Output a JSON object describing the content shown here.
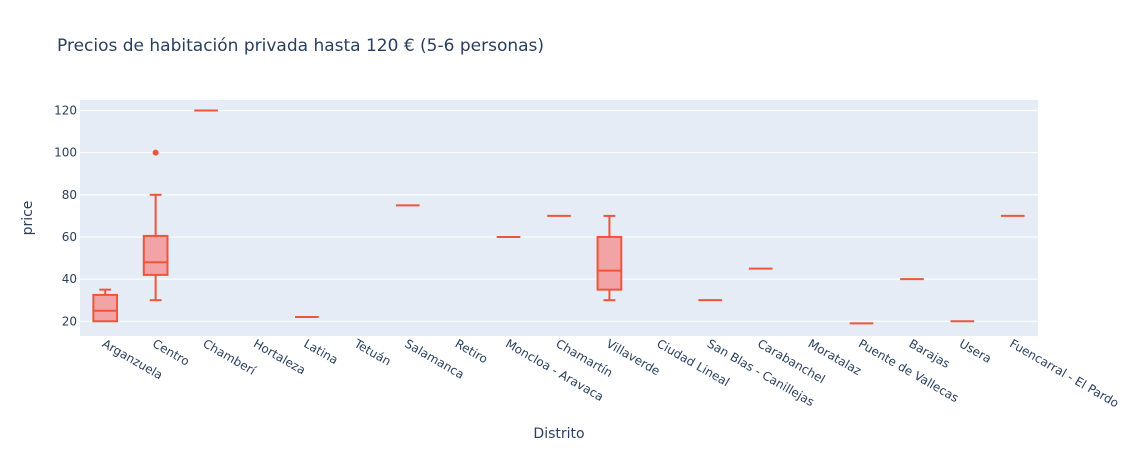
{
  "chart_data": {
    "type": "box",
    "title": "Precios de habitación privada hasta 120 € (5-6 personas)",
    "xlabel": "Distrito",
    "ylabel": "price",
    "ylim": [
      13,
      125
    ],
    "yticks": [
      20,
      40,
      60,
      80,
      100,
      120
    ],
    "grid": true,
    "colors": {
      "box": "#ef553b",
      "box_fill": "#f2a3a6",
      "plot_bg": "#e5ecf6",
      "grid": "#ffffff",
      "text": "#2a3f5f"
    },
    "categories": [
      "Arganzuela",
      "Centro",
      "Chamberí",
      "Hortaleza",
      "Latina",
      "Tetuán",
      "Salamanca",
      "Retiro",
      "Moncloa - Aravaca",
      "Chamartín",
      "Villaverde",
      "Ciudad Lineal",
      "San Blas - Canillejas",
      "Carabanchel",
      "Moratalaz",
      "Puente de Vallecas",
      "Barajas",
      "Usera",
      "Fuencarral - El Pardo"
    ],
    "boxes": [
      {
        "category": "Arganzuela",
        "min": 20,
        "q1": 20,
        "median": 25,
        "q3": 32.5,
        "max": 35,
        "outliers": []
      },
      {
        "category": "Centro",
        "min": 30,
        "q1": 42,
        "median": 48,
        "q3": 60.5,
        "max": 80,
        "outliers": [
          100
        ]
      },
      {
        "category": "Chamberí",
        "min": 120,
        "q1": 120,
        "median": 120,
        "q3": 120,
        "max": 120,
        "outliers": []
      },
      {
        "category": "Latina",
        "min": 22,
        "q1": 22,
        "median": 22,
        "q3": 22,
        "max": 22,
        "outliers": []
      },
      {
        "category": "Salamanca",
        "min": 75,
        "q1": 75,
        "median": 75,
        "q3": 75,
        "max": 75,
        "outliers": []
      },
      {
        "category": "Moncloa - Aravaca",
        "min": 60,
        "q1": 60,
        "median": 60,
        "q3": 60,
        "max": 60,
        "outliers": []
      },
      {
        "category": "Chamartín",
        "min": 70,
        "q1": 70,
        "median": 70,
        "q3": 70,
        "max": 70,
        "outliers": []
      },
      {
        "category": "Villaverde",
        "min": 30,
        "q1": 35,
        "median": 44,
        "q3": 60,
        "max": 70,
        "outliers": []
      },
      {
        "category": "San Blas - Canillejas",
        "min": 30,
        "q1": 30,
        "median": 30,
        "q3": 30,
        "max": 30,
        "outliers": []
      },
      {
        "category": "Carabanchel",
        "min": 45,
        "q1": 45,
        "median": 45,
        "q3": 45,
        "max": 45,
        "outliers": []
      },
      {
        "category": "Puente de Vallecas",
        "min": 19,
        "q1": 19,
        "median": 19,
        "q3": 19,
        "max": 19,
        "outliers": []
      },
      {
        "category": "Barajas",
        "min": 40,
        "q1": 40,
        "median": 40,
        "q3": 40,
        "max": 40,
        "outliers": []
      },
      {
        "category": "Usera",
        "min": 20,
        "q1": 20,
        "median": 20,
        "q3": 20,
        "max": 20,
        "outliers": []
      },
      {
        "category": "Fuencarral - El Pardo",
        "min": 70,
        "q1": 70,
        "median": 70,
        "q3": 70,
        "max": 70,
        "outliers": []
      }
    ]
  }
}
